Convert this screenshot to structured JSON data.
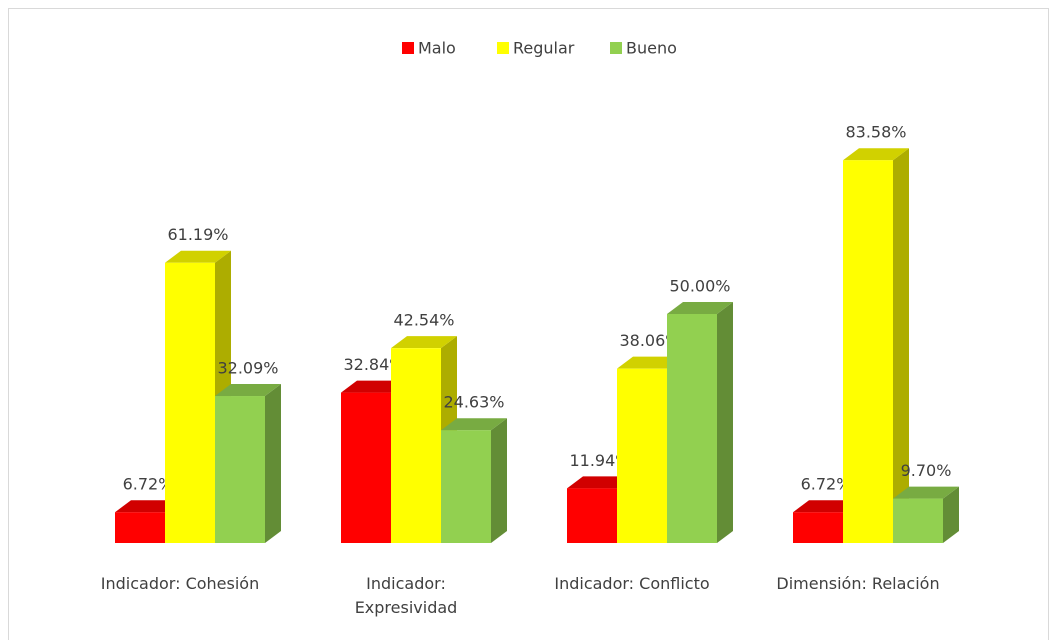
{
  "chart_data": {
    "type": "bar3d",
    "categories": [
      "Indicador: Cohesión",
      "Indicador: Expresividad",
      "Indicador: Conflicto",
      "Dimensión: Relación"
    ],
    "series": [
      {
        "name": "Malo",
        "color": "#ff0000",
        "values": [
          6.72,
          32.84,
          11.94,
          6.72
        ],
        "value_labels": [
          "6.72%",
          "32.84%",
          "11.94%",
          "6.72%"
        ]
      },
      {
        "name": "Regular",
        "color": "#ffff00",
        "values": [
          61.19,
          42.54,
          38.06,
          83.58
        ],
        "value_labels": [
          "61.19%",
          "42.54%",
          "38.06%",
          "83.58%"
        ]
      },
      {
        "name": "Bueno",
        "color": "#92d050",
        "values": [
          32.09,
          24.63,
          50.0,
          9.7
        ],
        "value_labels": [
          "32.09%",
          "24.63%",
          "50.00%",
          "9.70%"
        ]
      }
    ],
    "legend": "top"
  }
}
